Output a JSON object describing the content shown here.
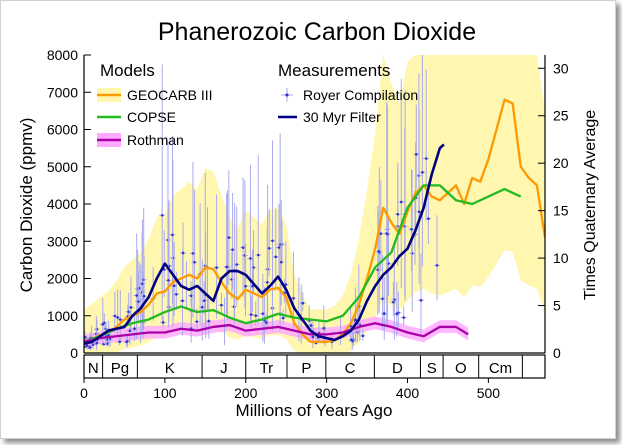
{
  "chart_data": {
    "type": "line",
    "title": "Phanerozoic Carbon Dioxide",
    "xlabel": "Millions of Years Ago",
    "ylabel": "Carbon Dioxide (ppmv)",
    "ylabel_right": "Times Quaternary Average",
    "xlim": [
      0,
      570
    ],
    "ylim": [
      0,
      8000
    ],
    "ylim_right": [
      0,
      31.4
    ],
    "x_ticks": [
      0,
      100,
      200,
      300,
      400,
      500
    ],
    "y_ticks": [
      0,
      1000,
      2000,
      3000,
      4000,
      5000,
      6000,
      7000,
      8000
    ],
    "y_ticks_right": [
      0,
      5,
      10,
      15,
      20,
      25,
      30
    ],
    "legend": {
      "models_title": "Models",
      "measurements_title": "Measurements",
      "entries": [
        "GEOCARB III",
        "COPSE",
        "Rothman",
        "Royer Compilation",
        "30 Myr Filter"
      ]
    },
    "periods": [
      {
        "label": "N",
        "start": 0,
        "end": 23
      },
      {
        "label": "Pg",
        "start": 23,
        "end": 66
      },
      {
        "label": "K",
        "start": 66,
        "end": 146
      },
      {
        "label": "J",
        "start": 146,
        "end": 200
      },
      {
        "label": "Tr",
        "start": 200,
        "end": 251
      },
      {
        "label": "P",
        "start": 251,
        "end": 299
      },
      {
        "label": "C",
        "start": 299,
        "end": 359
      },
      {
        "label": "D",
        "start": 359,
        "end": 416
      },
      {
        "label": "S",
        "start": 416,
        "end": 444
      },
      {
        "label": "O",
        "start": 444,
        "end": 488
      },
      {
        "label": "Cm",
        "start": 488,
        "end": 542
      }
    ],
    "colors": {
      "geocarb": "#ff9900",
      "geocarb_band": "#fff7b0",
      "copse": "#22bb22",
      "rothman": "#aa00aa",
      "rothman_band": "#ffaaff",
      "royer": "#3333cc",
      "royer_bars": "#aaaaee",
      "filter": "#000080"
    },
    "series": [
      {
        "name": "GEOCARB III",
        "x": [
          0,
          10,
          20,
          30,
          40,
          50,
          60,
          70,
          80,
          90,
          100,
          110,
          120,
          130,
          140,
          150,
          160,
          170,
          180,
          190,
          200,
          210,
          220,
          230,
          240,
          250,
          260,
          270,
          280,
          290,
          300,
          310,
          320,
          330,
          340,
          350,
          360,
          370,
          380,
          390,
          400,
          410,
          420,
          430,
          440,
          450,
          460,
          470,
          480,
          490,
          500,
          510,
          520,
          530,
          540,
          550,
          560,
          570
        ],
        "values": [
          300,
          380,
          480,
          550,
          700,
          900,
          1000,
          1100,
          1300,
          1600,
          1650,
          1900,
          2000,
          2100,
          2000,
          2300,
          2250,
          1900,
          1600,
          1450,
          1700,
          1600,
          1500,
          1700,
          1750,
          1500,
          800,
          500,
          300,
          300,
          300,
          350,
          500,
          800,
          1300,
          2000,
          2800,
          3900,
          3500,
          3200,
          3800,
          4300,
          4500,
          4200,
          4100,
          4300,
          4500,
          4000,
          4700,
          4600,
          5200,
          6000,
          6800,
          6700,
          5000,
          4700,
          4500,
          3100
        ]
      },
      {
        "name": "COPSE",
        "x": [
          0,
          20,
          40,
          60,
          80,
          100,
          120,
          140,
          160,
          180,
          200,
          220,
          240,
          260,
          280,
          300,
          320,
          340,
          360,
          380,
          400,
          420,
          440,
          460,
          480,
          500,
          520,
          540
        ],
        "values": [
          300,
          450,
          650,
          800,
          900,
          1100,
          1250,
          1100,
          1150,
          950,
          800,
          900,
          1050,
          950,
          900,
          850,
          1000,
          1500,
          2300,
          2700,
          3900,
          4500,
          4500,
          4100,
          4000,
          4200,
          4400,
          4200
        ]
      },
      {
        "name": "Rothman",
        "x": [
          0,
          20,
          40,
          60,
          80,
          100,
          120,
          140,
          160,
          180,
          200,
          220,
          240,
          260,
          280,
          300,
          320,
          340,
          360,
          380,
          400,
          420,
          440,
          460,
          475
        ],
        "values": [
          300,
          400,
          450,
          500,
          550,
          550,
          650,
          600,
          700,
          750,
          600,
          650,
          700,
          600,
          500,
          500,
          550,
          700,
          800,
          700,
          550,
          450,
          700,
          700,
          500
        ]
      },
      {
        "name": "30 Myr Filter",
        "x": [
          0,
          10,
          20,
          30,
          40,
          50,
          60,
          70,
          80,
          90,
          100,
          110,
          120,
          130,
          140,
          150,
          160,
          170,
          180,
          190,
          200,
          210,
          220,
          230,
          240,
          250,
          260,
          270,
          280,
          290,
          300,
          310,
          320,
          330,
          340,
          350,
          360,
          370,
          380,
          390,
          400,
          410,
          420,
          430,
          440,
          445
        ],
        "values": [
          250,
          300,
          450,
          600,
          650,
          700,
          1000,
          1200,
          1500,
          2000,
          2400,
          2100,
          1800,
          1700,
          1800,
          1600,
          1400,
          2000,
          2200,
          2200,
          2100,
          1850,
          1600,
          1800,
          2050,
          1700,
          1200,
          900,
          600,
          450,
          400,
          350,
          450,
          600,
          900,
          1400,
          1800,
          2100,
          2300,
          2600,
          2800,
          3300,
          3900,
          4800,
          5500,
          5600
        ]
      }
    ]
  }
}
